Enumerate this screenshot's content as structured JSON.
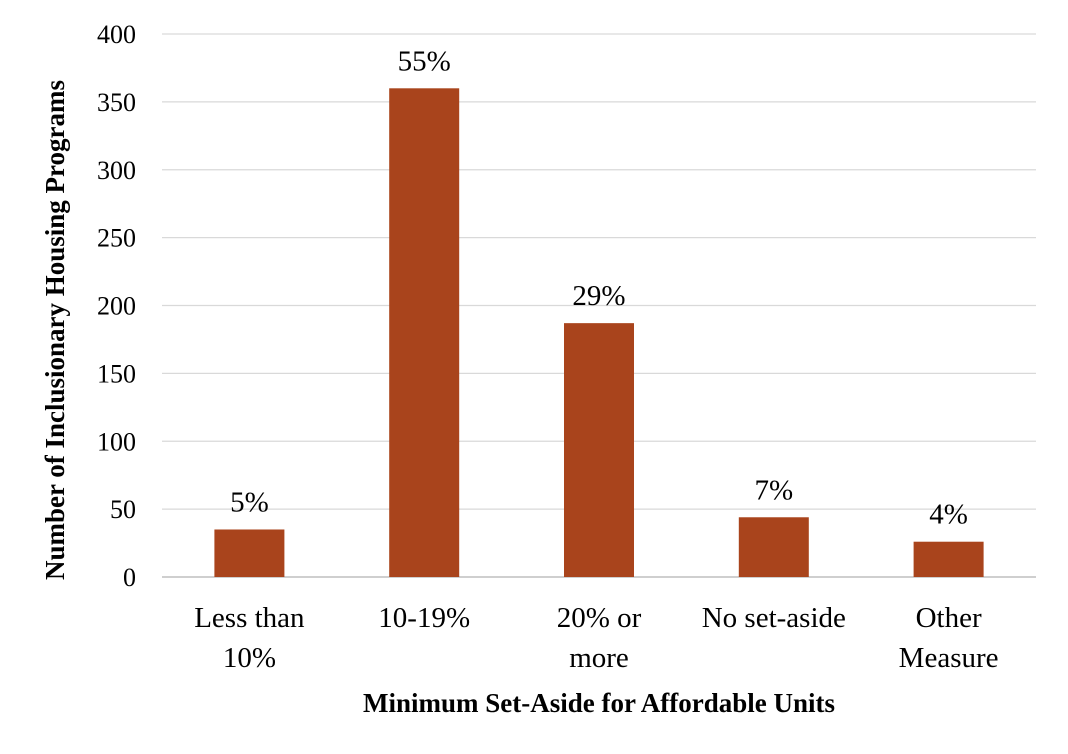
{
  "chart_data": {
    "type": "bar",
    "categories": [
      [
        "Less than",
        "10%"
      ],
      [
        "10-19%"
      ],
      [
        "20% or",
        "more"
      ],
      [
        "No set-aside"
      ],
      [
        "Other",
        "Measure"
      ]
    ],
    "values": [
      35,
      360,
      187,
      44,
      26
    ],
    "data_labels": [
      "5%",
      "55%",
      "29%",
      "7%",
      "4%"
    ],
    "xlabel": "Minimum Set-Aside for Affordable Units",
    "ylabel": "Number of Inclusionary Housing Programs",
    "ylim": [
      0,
      400
    ],
    "yticks": [
      0,
      50,
      100,
      150,
      200,
      250,
      300,
      350,
      400
    ],
    "grid": true,
    "legend": "none",
    "colors": {
      "bar": "#A9441C",
      "grid": "#D9D9D9",
      "axis": "#BFBFBF"
    }
  }
}
